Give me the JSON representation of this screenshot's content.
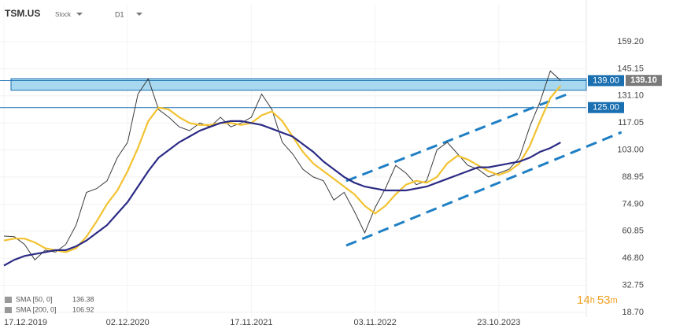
{
  "chart_data": {
    "type": "line",
    "symbol": "TSM.US",
    "instrument_type": "Stock",
    "interval": "D1",
    "categories": [
      "17.12.2019",
      null,
      null,
      null,
      null,
      null,
      null,
      null,
      null,
      null,
      null,
      null,
      "02.12.2020",
      null,
      null,
      null,
      null,
      null,
      null,
      null,
      null,
      null,
      null,
      null,
      "17.11.2021",
      null,
      null,
      null,
      null,
      null,
      null,
      null,
      null,
      null,
      null,
      null,
      "03.11.2022",
      null,
      null,
      null,
      null,
      null,
      null,
      null,
      null,
      null,
      null,
      null,
      "23.10.2023",
      null,
      null,
      null,
      null,
      null,
      null
    ],
    "series": [
      {
        "name": "TSM.US",
        "color": "#3a3a3a",
        "values": [
          58.3,
          58,
          54,
          46,
          51,
          50,
          54,
          64,
          81,
          83,
          87,
          99,
          107,
          132,
          140,
          124,
          120,
          115,
          113,
          117,
          115,
          120,
          115,
          117,
          120,
          132,
          124,
          107,
          101,
          93,
          89,
          87,
          77,
          81,
          71,
          60,
          73,
          83,
          95,
          91,
          85,
          87,
          103,
          107,
          101,
          95,
          93,
          89,
          91,
          93,
          99,
          115,
          128,
          144,
          139.1
        ],
        "value_labels": [
          null,
          null,
          null,
          null,
          null,
          null,
          null,
          null,
          null,
          null,
          null,
          null,
          null,
          null,
          null,
          null,
          null,
          null,
          null,
          null,
          null,
          null,
          null,
          null,
          null,
          null,
          null,
          null,
          null,
          null,
          null,
          null,
          null,
          null,
          null,
          null,
          null,
          null,
          null,
          null,
          null,
          null,
          null,
          null,
          null,
          null,
          null,
          null,
          null,
          null,
          null,
          null,
          null,
          null,
          "139.10"
        ]
      },
      {
        "name": "SMA [50, 0]",
        "color": "#f2c230",
        "last_label": "136.38",
        "values": [
          56,
          57,
          57,
          55,
          52,
          51,
          50,
          52,
          58,
          66,
          75,
          82,
          92,
          104,
          118,
          125,
          124,
          120,
          117,
          116,
          116,
          117,
          117,
          116,
          117,
          121,
          123,
          118,
          110,
          102,
          96,
          92,
          88,
          84,
          80,
          74,
          70,
          74,
          80,
          85,
          87,
          86,
          89,
          96,
          100,
          98,
          95,
          92,
          90,
          92,
          96,
          105,
          118,
          130,
          136.38
        ]
      },
      {
        "name": "SMA [200, 0]",
        "color": "#2b2b85",
        "last_label": "106.92",
        "values": [
          43,
          46,
          48,
          49,
          50,
          51,
          51,
          53,
          56,
          60,
          64,
          70,
          76,
          84,
          92,
          99,
          103,
          107,
          110,
          113,
          115,
          117,
          118,
          118,
          117,
          116,
          114,
          112,
          110,
          106,
          102,
          97,
          93,
          89,
          86,
          84,
          83,
          82,
          82,
          82,
          83,
          84,
          86,
          88,
          90,
          92,
          94,
          94,
          95,
          96,
          97,
          99,
          102,
          104,
          106.92
        ]
      }
    ],
    "levels": [
      {
        "value": 139,
        "label": "139.00"
      },
      {
        "value": 125,
        "label": "125.00"
      }
    ],
    "zone": [
      134,
      140
    ],
    "trendlines": [
      {
        "x": [
          33.2,
          55
        ],
        "y": [
          86.9,
          132.7
        ]
      },
      {
        "x": [
          33.2,
          59.9
        ],
        "y": [
          53.4,
          112.2
        ]
      }
    ],
    "ylim": [
      16.25,
      178.8
    ],
    "yticks": [
      {
        "value": 159.2,
        "label": "159.20"
      },
      145.15,
      {
        "value": 131.1,
        "label": "131.10"
      },
      117.05,
      {
        "value": 103,
        "label": "103.00"
      },
      88.95,
      {
        "value": 74.9,
        "label": "74.90"
      },
      60.85,
      {
        "value": 46.8,
        "label": "46.80"
      },
      32.75,
      {
        "value": 18.7,
        "label": "18.70"
      }
    ],
    "grid": true,
    "timer": [
      "14",
      "h",
      "53",
      "m"
    ]
  }
}
